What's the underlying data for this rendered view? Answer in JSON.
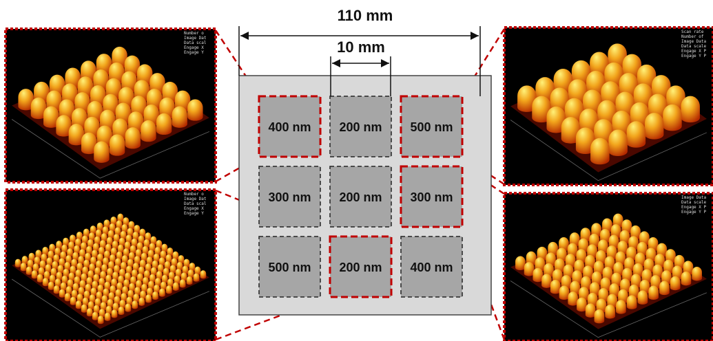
{
  "dimensions": {
    "outer": "110 mm",
    "inner": "10 mm"
  },
  "cells": [
    [
      {
        "label": "400 nm",
        "highlighted": true
      },
      {
        "label": "200 nm",
        "highlighted": false
      },
      {
        "label": "500 nm",
        "highlighted": true
      }
    ],
    [
      {
        "label": "300 nm",
        "highlighted": false
      },
      {
        "label": "200 nm",
        "highlighted": false
      },
      {
        "label": "300 nm",
        "highlighted": true
      }
    ],
    [
      {
        "label": "500 nm",
        "highlighted": false
      },
      {
        "label": "200 nm",
        "highlighted": true
      },
      {
        "label": "400 nm",
        "highlighted": false
      }
    ]
  ],
  "panels": [
    {
      "info": [
        "Number o",
        "Image Dat",
        "Data scal",
        "Engage X",
        "Engage Y"
      ]
    },
    {
      "info": [
        "Number o",
        "Image Dat",
        "Data scal",
        "Engage X",
        "Engage Y"
      ]
    },
    {
      "info": [
        "Scan rate",
        "Number of",
        "Image Data",
        "Data scale",
        "Engage X P",
        "Engage Y P"
      ]
    },
    {
      "info": [
        "Image Data",
        "Data scale",
        "Engage X P",
        "Engage Y P"
      ]
    }
  ]
}
